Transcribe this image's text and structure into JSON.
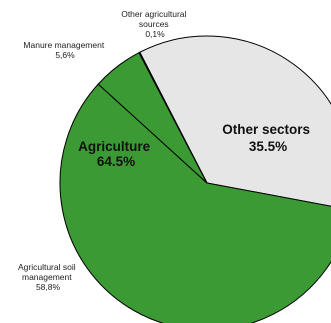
{
  "chart_data": {
    "type": "pie",
    "slices": [
      {
        "label_lines": [
          "Other sectors",
          "35.5%"
        ],
        "value": 35.5,
        "color": "#e6e6e6",
        "label_style": "big"
      },
      {
        "label_lines": [
          "Agricultural soil",
          "management",
          "58,8%"
        ],
        "value": 58.8,
        "color": "#3c9a34",
        "label_style": "small"
      },
      {
        "label_lines": [
          "Manure management",
          "5,6%"
        ],
        "value": 5.6,
        "color": "#3c9a34",
        "label_style": "small"
      },
      {
        "label_lines": [
          "Other agricultural",
          "sources",
          "0,1%"
        ],
        "value": 0.1,
        "color": "#3c9a34",
        "label_style": "small"
      }
    ],
    "group_labels": [
      {
        "label_lines": [
          "Agriculture",
          "64.5%"
        ],
        "value": 64.5
      }
    ]
  }
}
